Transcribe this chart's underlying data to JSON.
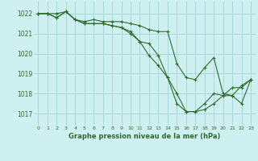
{
  "title": "Graphe pression niveau de la mer (hPa)",
  "bg_color": "#cff0f0",
  "grid_color": "#a8d8d8",
  "line_color": "#2d6b2d",
  "xlim": [
    -0.5,
    23.5
  ],
  "ylim": [
    1016.4,
    1022.6
  ],
  "yticks": [
    1017,
    1018,
    1019,
    1020,
    1021,
    1022
  ],
  "xticks": [
    0,
    1,
    2,
    3,
    4,
    5,
    6,
    7,
    8,
    9,
    10,
    11,
    12,
    13,
    14,
    15,
    16,
    17,
    18,
    19,
    20,
    21,
    22,
    23
  ],
  "series": [
    [
      1022.0,
      1022.0,
      1022.0,
      1022.1,
      1021.7,
      1021.6,
      1021.7,
      1021.6,
      1021.6,
      1021.6,
      1021.5,
      1021.4,
      1021.2,
      1021.1,
      1021.1,
      1019.5,
      1018.8,
      1018.7,
      1019.3,
      1019.8,
      1018.0,
      1017.9,
      1018.4,
      1018.7
    ],
    [
      1022.0,
      1022.0,
      1021.8,
      1022.1,
      1021.7,
      1021.5,
      1021.5,
      1021.5,
      1021.4,
      1021.3,
      1021.0,
      1020.6,
      1019.9,
      1019.4,
      1018.8,
      1018.0,
      1017.1,
      1017.1,
      1017.5,
      1018.0,
      1017.9,
      1018.3,
      1018.3,
      1018.7
    ],
    [
      1022.0,
      1022.0,
      1021.8,
      1022.1,
      1021.7,
      1021.5,
      1021.5,
      1021.5,
      1021.4,
      1021.3,
      1021.1,
      1020.6,
      1020.5,
      1019.9,
      1018.8,
      1017.5,
      1017.1,
      1017.1,
      1017.2,
      1017.5,
      1017.9,
      1017.9,
      1017.5,
      1018.7
    ]
  ]
}
